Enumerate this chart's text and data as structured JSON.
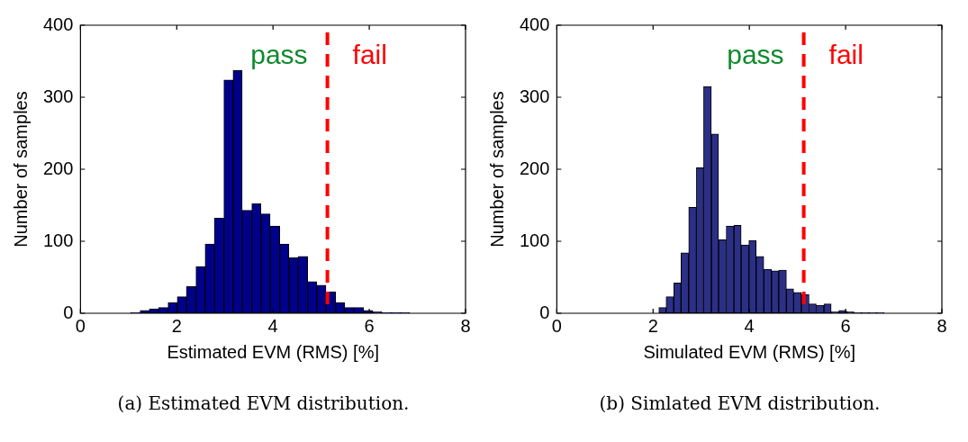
{
  "chart_data": [
    {
      "type": "histogram",
      "xlabel": "Estimated EVM (RMS) [%]",
      "ylabel": "Number of samples",
      "color": "#00008b",
      "bins": [
        1.04,
        1.24,
        1.43,
        1.62,
        1.82,
        2.01,
        2.2,
        2.4,
        2.59,
        2.78,
        2.98,
        3.17,
        3.36,
        3.56,
        3.75,
        3.94,
        4.14,
        4.33,
        4.52,
        4.72,
        4.91,
        5.1,
        5.3,
        5.49,
        5.68,
        5.88,
        6.07,
        6.26,
        6.46,
        6.65,
        6.84
      ],
      "values": [
        1,
        4,
        6,
        8,
        15,
        23,
        37,
        65,
        96,
        132,
        324,
        337,
        143,
        152,
        138,
        121,
        96,
        77,
        79,
        44,
        39,
        30,
        15,
        8,
        8,
        4,
        2,
        1,
        1,
        1
      ],
      "xlim": [
        0,
        8
      ],
      "xticks": [
        0,
        2,
        4,
        6,
        8
      ],
      "ylim": [
        0,
        400
      ],
      "yticks": [
        0,
        100,
        200,
        300,
        400
      ],
      "grid": false,
      "ref_lines": [
        {
          "axis": "x",
          "value": 5.13,
          "color": "#ff0000",
          "line_style": "dashed"
        }
      ],
      "annotations": [
        "pass",
        "fail",
        "(a) Estimated EVM distribution."
      ]
    },
    {
      "type": "histogram",
      "xlabel": "Simulated EVM (RMS) [%]",
      "ylabel": "Number of samples",
      "color": "#2b2f86",
      "bins": [
        2.12,
        2.27,
        2.43,
        2.58,
        2.74,
        2.9,
        3.05,
        3.21,
        3.36,
        3.52,
        3.68,
        3.83,
        3.99,
        4.14,
        4.3,
        4.46,
        4.61,
        4.77,
        4.92,
        5.08,
        5.24,
        5.39,
        5.55,
        5.7,
        5.86,
        6.02,
        6.17,
        6.33,
        6.48,
        6.64,
        6.8
      ],
      "values": [
        8,
        23,
        42,
        84,
        147,
        202,
        315,
        249,
        102,
        121,
        122,
        95,
        101,
        79,
        61,
        59,
        60,
        34,
        29,
        26,
        13,
        11,
        13,
        2,
        4,
        2,
        1,
        1,
        1,
        1
      ],
      "xlim": [
        0,
        8
      ],
      "xticks": [
        0,
        2,
        4,
        6,
        8
      ],
      "ylim": [
        0,
        400
      ],
      "yticks": [
        0,
        100,
        200,
        300,
        400
      ],
      "grid": false,
      "ref_lines": [
        {
          "axis": "x",
          "value": 5.13,
          "color": "#ff0000",
          "line_style": "dashed"
        }
      ],
      "annotations": [
        "pass",
        "fail",
        "(b) Simlated EVM distribution."
      ]
    }
  ]
}
